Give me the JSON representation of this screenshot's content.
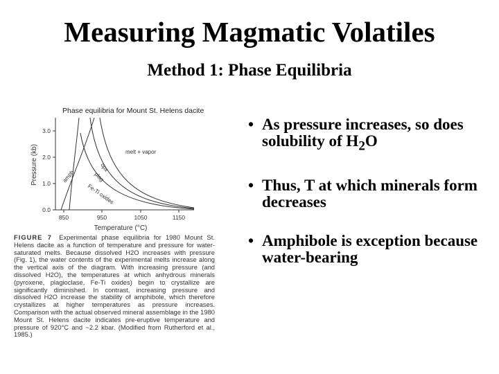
{
  "slide": {
    "title": "Measuring Magmatic Volatiles",
    "subtitle": "Method 1: Phase Equilibria"
  },
  "figure": {
    "title": "Phase equilibria for Mount St. Helens dacite",
    "y_axis_label": "Pressure (kb)",
    "x_axis_label": "Temperature (°C)",
    "y_ticks": [
      "3.0",
      "2.0",
      "1.0",
      "0.0"
    ],
    "x_ticks": [
      "850",
      "950",
      "1050",
      "1150"
    ],
    "region_label": "melt + vapor",
    "curve_labels": [
      "amph",
      "opx",
      "plag",
      "Fe-Ti oxides"
    ],
    "caption_label": "FIGURE 7",
    "caption_text": "Experimental phase equilibria for 1980 Mount St. Helens dacite as a function of temperature and pressure for water-saturated melts. Because dissolved H2O increases with pressure (Fig. 1), the water contents of the experimental melts increase along the vertical axis of the diagram. With increasing pressure (and dissolved H2O), the temperatures at which anhydrous minerals (pyroxene, plagioclase, Fe-Ti oxides) begin to crystallize are significantly diminished. In contrast, increasing pressure and dissolved H2O increase the stability of amphibole, which therefore crystallizes at higher temperatures as pressure increases. Comparison with the actual observed mineral assemblage in the 1980 Mount St. Helens dacite indicates pre-eruptive temperature and pressure of 920°C and ~2.2 kbar. (Modified from Rutherford et al., 1985.)"
  },
  "bullets": [
    {
      "pre": "As pressure increases, so does solubility of H",
      "sub": "2",
      "post": "O"
    },
    {
      "pre": "Thus, T at which minerals form decreases",
      "sub": "",
      "post": ""
    },
    {
      "pre": "Amphibole is exception because water-bearing",
      "sub": "",
      "post": ""
    }
  ]
}
